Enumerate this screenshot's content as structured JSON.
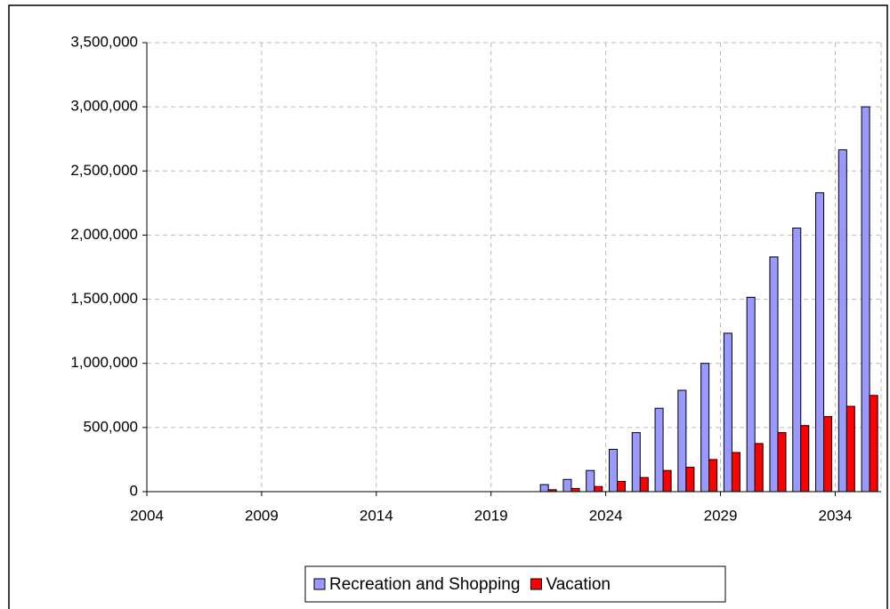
{
  "chart_data": {
    "type": "bar",
    "categories": [
      "2004",
      null,
      null,
      null,
      null,
      "2009",
      null,
      null,
      null,
      null,
      "2014",
      null,
      null,
      null,
      null,
      "2019",
      null,
      null,
      null,
      null,
      "2024",
      null,
      null,
      null,
      null,
      "2029",
      null,
      null,
      null,
      null,
      "2034",
      null
    ],
    "series": [
      {
        "name": "Recreation and Shopping",
        "color": "#9999ff",
        "values": [
          0,
          0,
          0,
          0,
          0,
          0,
          0,
          0,
          0,
          0,
          0,
          0,
          0,
          0,
          0,
          0,
          0,
          55000,
          95000,
          165000,
          330000,
          460000,
          650000,
          790000,
          1000000,
          1235000,
          1515000,
          1830000,
          2055000,
          2330000,
          2665000,
          3000000
        ]
      },
      {
        "name": "Vacation",
        "color": "#ff0000",
        "values": [
          0,
          0,
          0,
          0,
          0,
          0,
          0,
          0,
          0,
          0,
          0,
          0,
          0,
          0,
          0,
          0,
          0,
          15000,
          25000,
          40000,
          80000,
          110000,
          165000,
          190000,
          250000,
          305000,
          375000,
          460000,
          515000,
          585000,
          665000,
          750000
        ]
      }
    ],
    "ylim": [
      0,
      3500000
    ],
    "yticks": [
      0,
      {
        "value": 500000,
        "label": "500,000"
      },
      {
        "value": 1000000,
        "label": "1,000,000"
      },
      {
        "value": 1500000,
        "label": "1,500,000"
      },
      {
        "value": 2000000,
        "label": "2,000,000"
      },
      {
        "value": 2500000,
        "label": "2,500,000"
      },
      {
        "value": 3000000,
        "label": "3,000,000"
      },
      {
        "value": 3500000,
        "label": "3,500,000"
      }
    ],
    "grid": true,
    "legend": "bottom"
  }
}
